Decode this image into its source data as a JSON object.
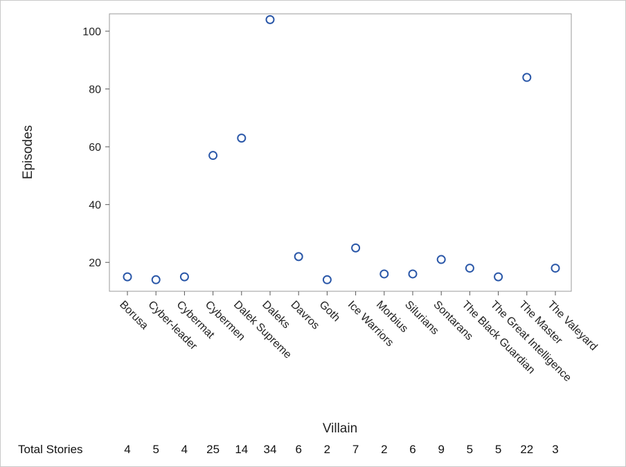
{
  "chart_data": {
    "type": "scatter",
    "xlabel": "Villain",
    "ylabel": "Episodes",
    "ylim": [
      10,
      106
    ],
    "yticks": [
      20,
      40,
      60,
      80,
      100
    ],
    "grid": false,
    "marker_color": "#2a57a8",
    "categories": [
      "Borusa",
      "Cyber-leader",
      "Cybermat",
      "Cybermen",
      "Dalek Supreme",
      "Daleks",
      "Davros",
      "Goth",
      "Ice Warriors",
      "Morbius",
      "Silurians",
      "Sontarans",
      "The Black Guardian",
      "The Great Intelligence",
      "The Master",
      "The Valeyard"
    ],
    "values": [
      15,
      14,
      15,
      57,
      63,
      104,
      22,
      14,
      25,
      16,
      16,
      21,
      18,
      15,
      84,
      18
    ],
    "stat_row": {
      "label": "Total Stories",
      "values": [
        "4",
        "5",
        "4",
        "25",
        "14",
        "34",
        "6",
        "2",
        "7",
        "2",
        "6",
        "9",
        "5",
        "5",
        "22",
        "3"
      ]
    }
  }
}
